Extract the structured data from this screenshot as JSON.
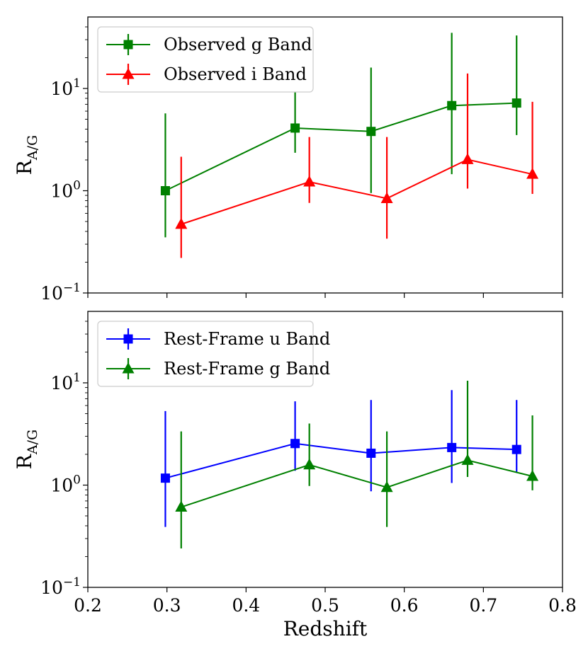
{
  "chart_data": [
    {
      "type": "line",
      "panel": "top",
      "xlabel": "",
      "ylabel": "R",
      "ylabel_sub": "A/G",
      "yscale": "log",
      "xlim": [
        0.2,
        0.8
      ],
      "ylim": [
        0.1,
        50
      ],
      "xticks": [
        0.2,
        0.3,
        0.4,
        0.5,
        0.6,
        0.7,
        0.8
      ],
      "show_x_tick_labels": false,
      "yticks": [
        {
          "value": 0.1,
          "base": "10",
          "exp": "−1"
        },
        {
          "value": 1,
          "base": "10",
          "exp": "0"
        },
        {
          "value": 10,
          "base": "10",
          "exp": "1"
        }
      ],
      "legend": "top-left",
      "series": [
        {
          "name": "Observed g Band",
          "color": "#008000",
          "marker": "square",
          "x": [
            0.298,
            0.462,
            0.558,
            0.66,
            0.742
          ],
          "y": [
            1.0,
            4.1,
            3.8,
            6.8,
            7.2
          ],
          "y_low": [
            0.35,
            2.35,
            0.95,
            1.45,
            3.5
          ],
          "y_high": [
            5.7,
            10.8,
            16.0,
            35.0,
            33.0
          ]
        },
        {
          "name": "Observed i Band",
          "color": "#ff0000",
          "marker": "triangle",
          "x": [
            0.318,
            0.48,
            0.578,
            0.68,
            0.762
          ],
          "y": [
            0.47,
            1.22,
            0.84,
            2.02,
            1.45
          ],
          "y_low": [
            0.22,
            0.76,
            0.34,
            1.05,
            0.93
          ],
          "y_high": [
            2.15,
            3.35,
            3.35,
            14.0,
            7.4
          ]
        }
      ]
    },
    {
      "type": "line",
      "panel": "bottom",
      "xlabel": "Redshift",
      "ylabel": "R",
      "ylabel_sub": "A/G",
      "yscale": "log",
      "xlim": [
        0.2,
        0.8
      ],
      "ylim": [
        0.1,
        50
      ],
      "xticks": [
        0.2,
        0.3,
        0.4,
        0.5,
        0.6,
        0.7,
        0.8
      ],
      "x_tick_labels": [
        "0.2",
        "0.3",
        "0.4",
        "0.5",
        "0.6",
        "0.7",
        "0.8"
      ],
      "show_x_tick_labels": true,
      "yticks": [
        {
          "value": 0.1,
          "base": "10",
          "exp": "−1"
        },
        {
          "value": 1,
          "base": "10",
          "exp": "0"
        },
        {
          "value": 10,
          "base": "10",
          "exp": "1"
        }
      ],
      "legend": "top-left",
      "series": [
        {
          "name": "Rest-Frame u Band",
          "color": "#0000ff",
          "marker": "square",
          "x": [
            0.298,
            0.462,
            0.558,
            0.66,
            0.742
          ],
          "y": [
            1.17,
            2.55,
            2.05,
            2.33,
            2.23
          ],
          "y_low": [
            0.39,
            1.38,
            0.87,
            1.05,
            1.32
          ],
          "y_high": [
            5.3,
            6.6,
            6.8,
            8.5,
            6.8
          ]
        },
        {
          "name": "Rest-Frame g Band",
          "color": "#008000",
          "marker": "triangle",
          "x": [
            0.318,
            0.48,
            0.578,
            0.68,
            0.762
          ],
          "y": [
            0.61,
            1.58,
            0.95,
            1.75,
            1.22
          ],
          "y_low": [
            0.24,
            0.98,
            0.39,
            1.2,
            0.89
          ],
          "y_high": [
            3.35,
            4.0,
            3.35,
            10.5,
            4.8
          ]
        }
      ]
    }
  ]
}
